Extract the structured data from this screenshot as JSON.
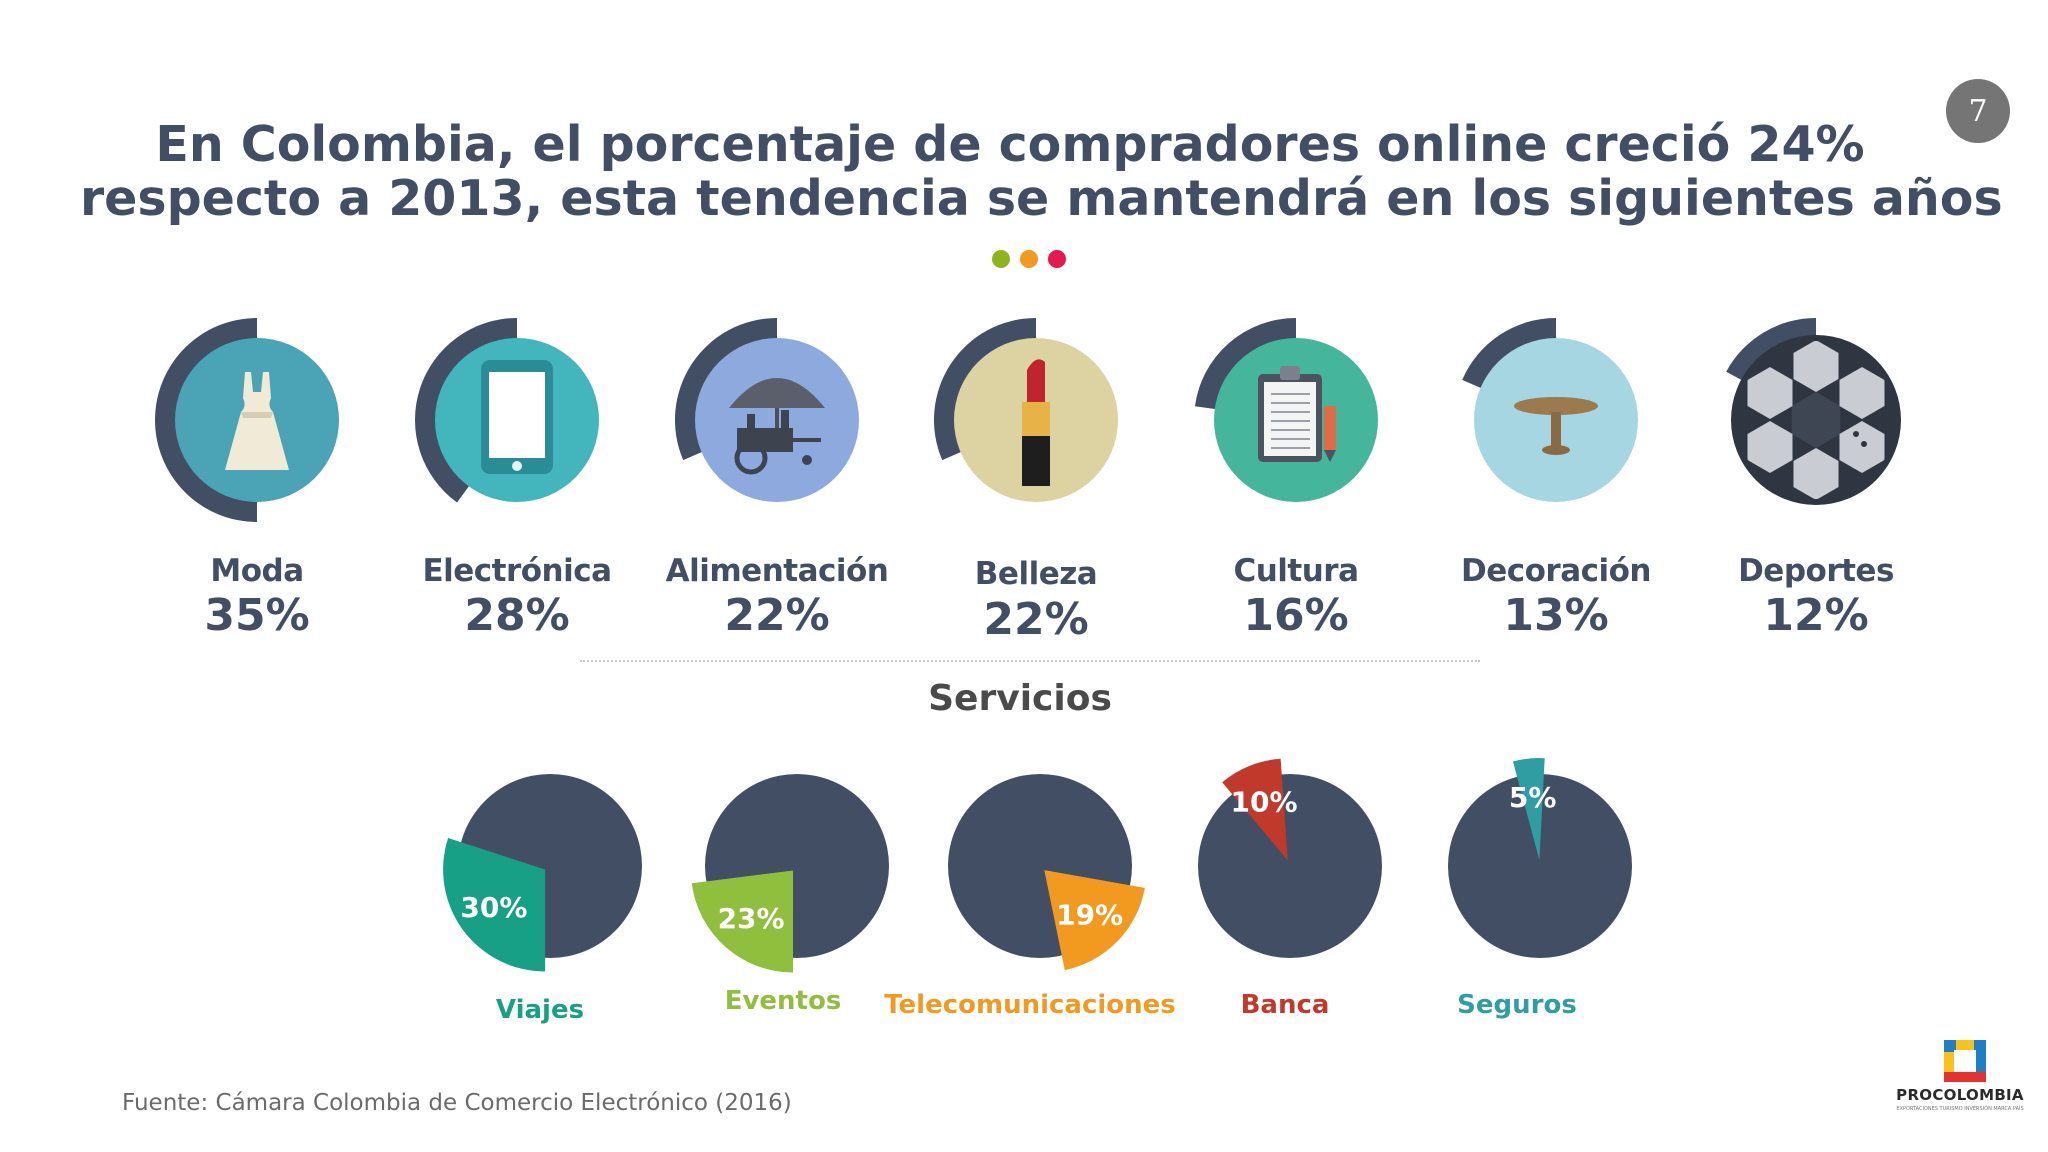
{
  "slide": {
    "page_number": "7",
    "title_lines": [
      "En Colombia, el porcentaje de compradores online creció 24%",
      "respecto a 2013, esta tendencia se mantendrá en los siguientes años"
    ],
    "dots_colors": [
      "#8fb31d",
      "#f29a1f",
      "#e5194f"
    ],
    "services_title": "Servicios",
    "source": "Fuente: Cámara Colombia de Comercio Electrónico (2016)",
    "logo": {
      "name": "PROCOLOMBIA",
      "tagline": "EXPORTACIONES TURISMO INVERSIÓN MARCA PAÍS"
    }
  },
  "chart_data": [
    {
      "type": "bar",
      "title": "",
      "categories": [
        "Moda",
        "Electrónica",
        "Alimentación",
        "Belleza",
        "Cultura",
        "Decoración",
        "Deportes"
      ],
      "values": [
        35,
        28,
        22,
        22,
        16,
        13,
        12
      ],
      "value_labels": [
        "35%",
        "28%",
        "22%",
        "22%",
        "16%",
        "13%",
        "12%"
      ],
      "icons": [
        "dress-icon",
        "tablet-icon",
        "food-cart-icon",
        "lipstick-icon",
        "clipboard-icon",
        "table-icon",
        "soccer-ball-icon"
      ],
      "circle_colors": [
        "#4ba3b6",
        "#43b5bd",
        "#8ea9de",
        "#ddd3a2",
        "#45b69b",
        "#a6d6e2",
        "#3d4554"
      ],
      "arc_color": "#424e63"
    },
    {
      "type": "pie",
      "title": "Servicios",
      "categories": [
        "Viajes",
        "Eventos",
        "Telecomunicaciones",
        "Banca",
        "Seguros"
      ],
      "values": [
        30,
        23,
        19,
        10,
        5
      ],
      "value_labels": [
        "30%",
        "23%",
        "19%",
        "10%",
        "5%"
      ],
      "colors": [
        "#17a085",
        "#8fbf3d",
        "#f29a1f",
        "#c0392b",
        "#2e9ea3"
      ],
      "base_color": "#424e63"
    }
  ]
}
